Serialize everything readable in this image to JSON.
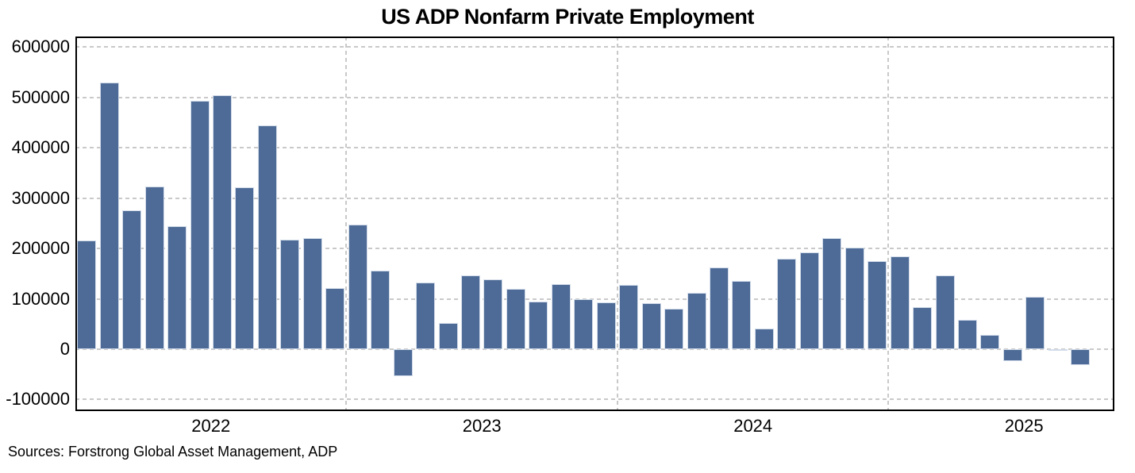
{
  "title": "US ADP Nonfarm Private Employment",
  "source_note": "Sources: Forstrong Global Asset Management, ADP",
  "colors": {
    "bar": "#4d6b96",
    "bar_edge": "#d3dcea",
    "gridline": "#c9c9c9",
    "axis_border": "#000000",
    "background": "#ffffff",
    "text": "#000000"
  },
  "chart_data": {
    "type": "bar",
    "title": "US ADP Nonfarm Private Employment",
    "values": [
      216000,
      530000,
      276000,
      323000,
      244000,
      494000,
      505000,
      322000,
      444000,
      217000,
      221000,
      122000,
      247000,
      156000,
      -53000,
      132000,
      52000,
      147000,
      139000,
      120000,
      94000,
      129000,
      100000,
      93000,
      128000,
      91000,
      81000,
      112000,
      163000,
      135000,
      41000,
      179000,
      192000,
      220000,
      202000,
      175000,
      185000,
      83000,
      146000,
      59000,
      28000,
      -23000,
      104000,
      -3000,
      -32000
    ],
    "y_ticks": [
      600000,
      500000,
      400000,
      300000,
      200000,
      100000,
      0,
      -100000
    ],
    "y_tick_labels": [
      "600000",
      "500000",
      "400000",
      "300000",
      "200000",
      "100000",
      "0",
      "-100000"
    ],
    "ylim": [
      -123000,
      621000
    ],
    "x_tick_labels": [
      "2022",
      "2023",
      "2024",
      "2025"
    ],
    "x_tick_slot_positions": [
      6,
      18,
      30,
      42
    ],
    "x_gridline_slot_positions": [
      12,
      24,
      36
    ],
    "n_slots": 46,
    "bar_count": 45,
    "grid": "dashed gray, horizontal at every y tick, vertical at year boundaries",
    "legend": "none",
    "xlabel": "",
    "ylabel": ""
  }
}
